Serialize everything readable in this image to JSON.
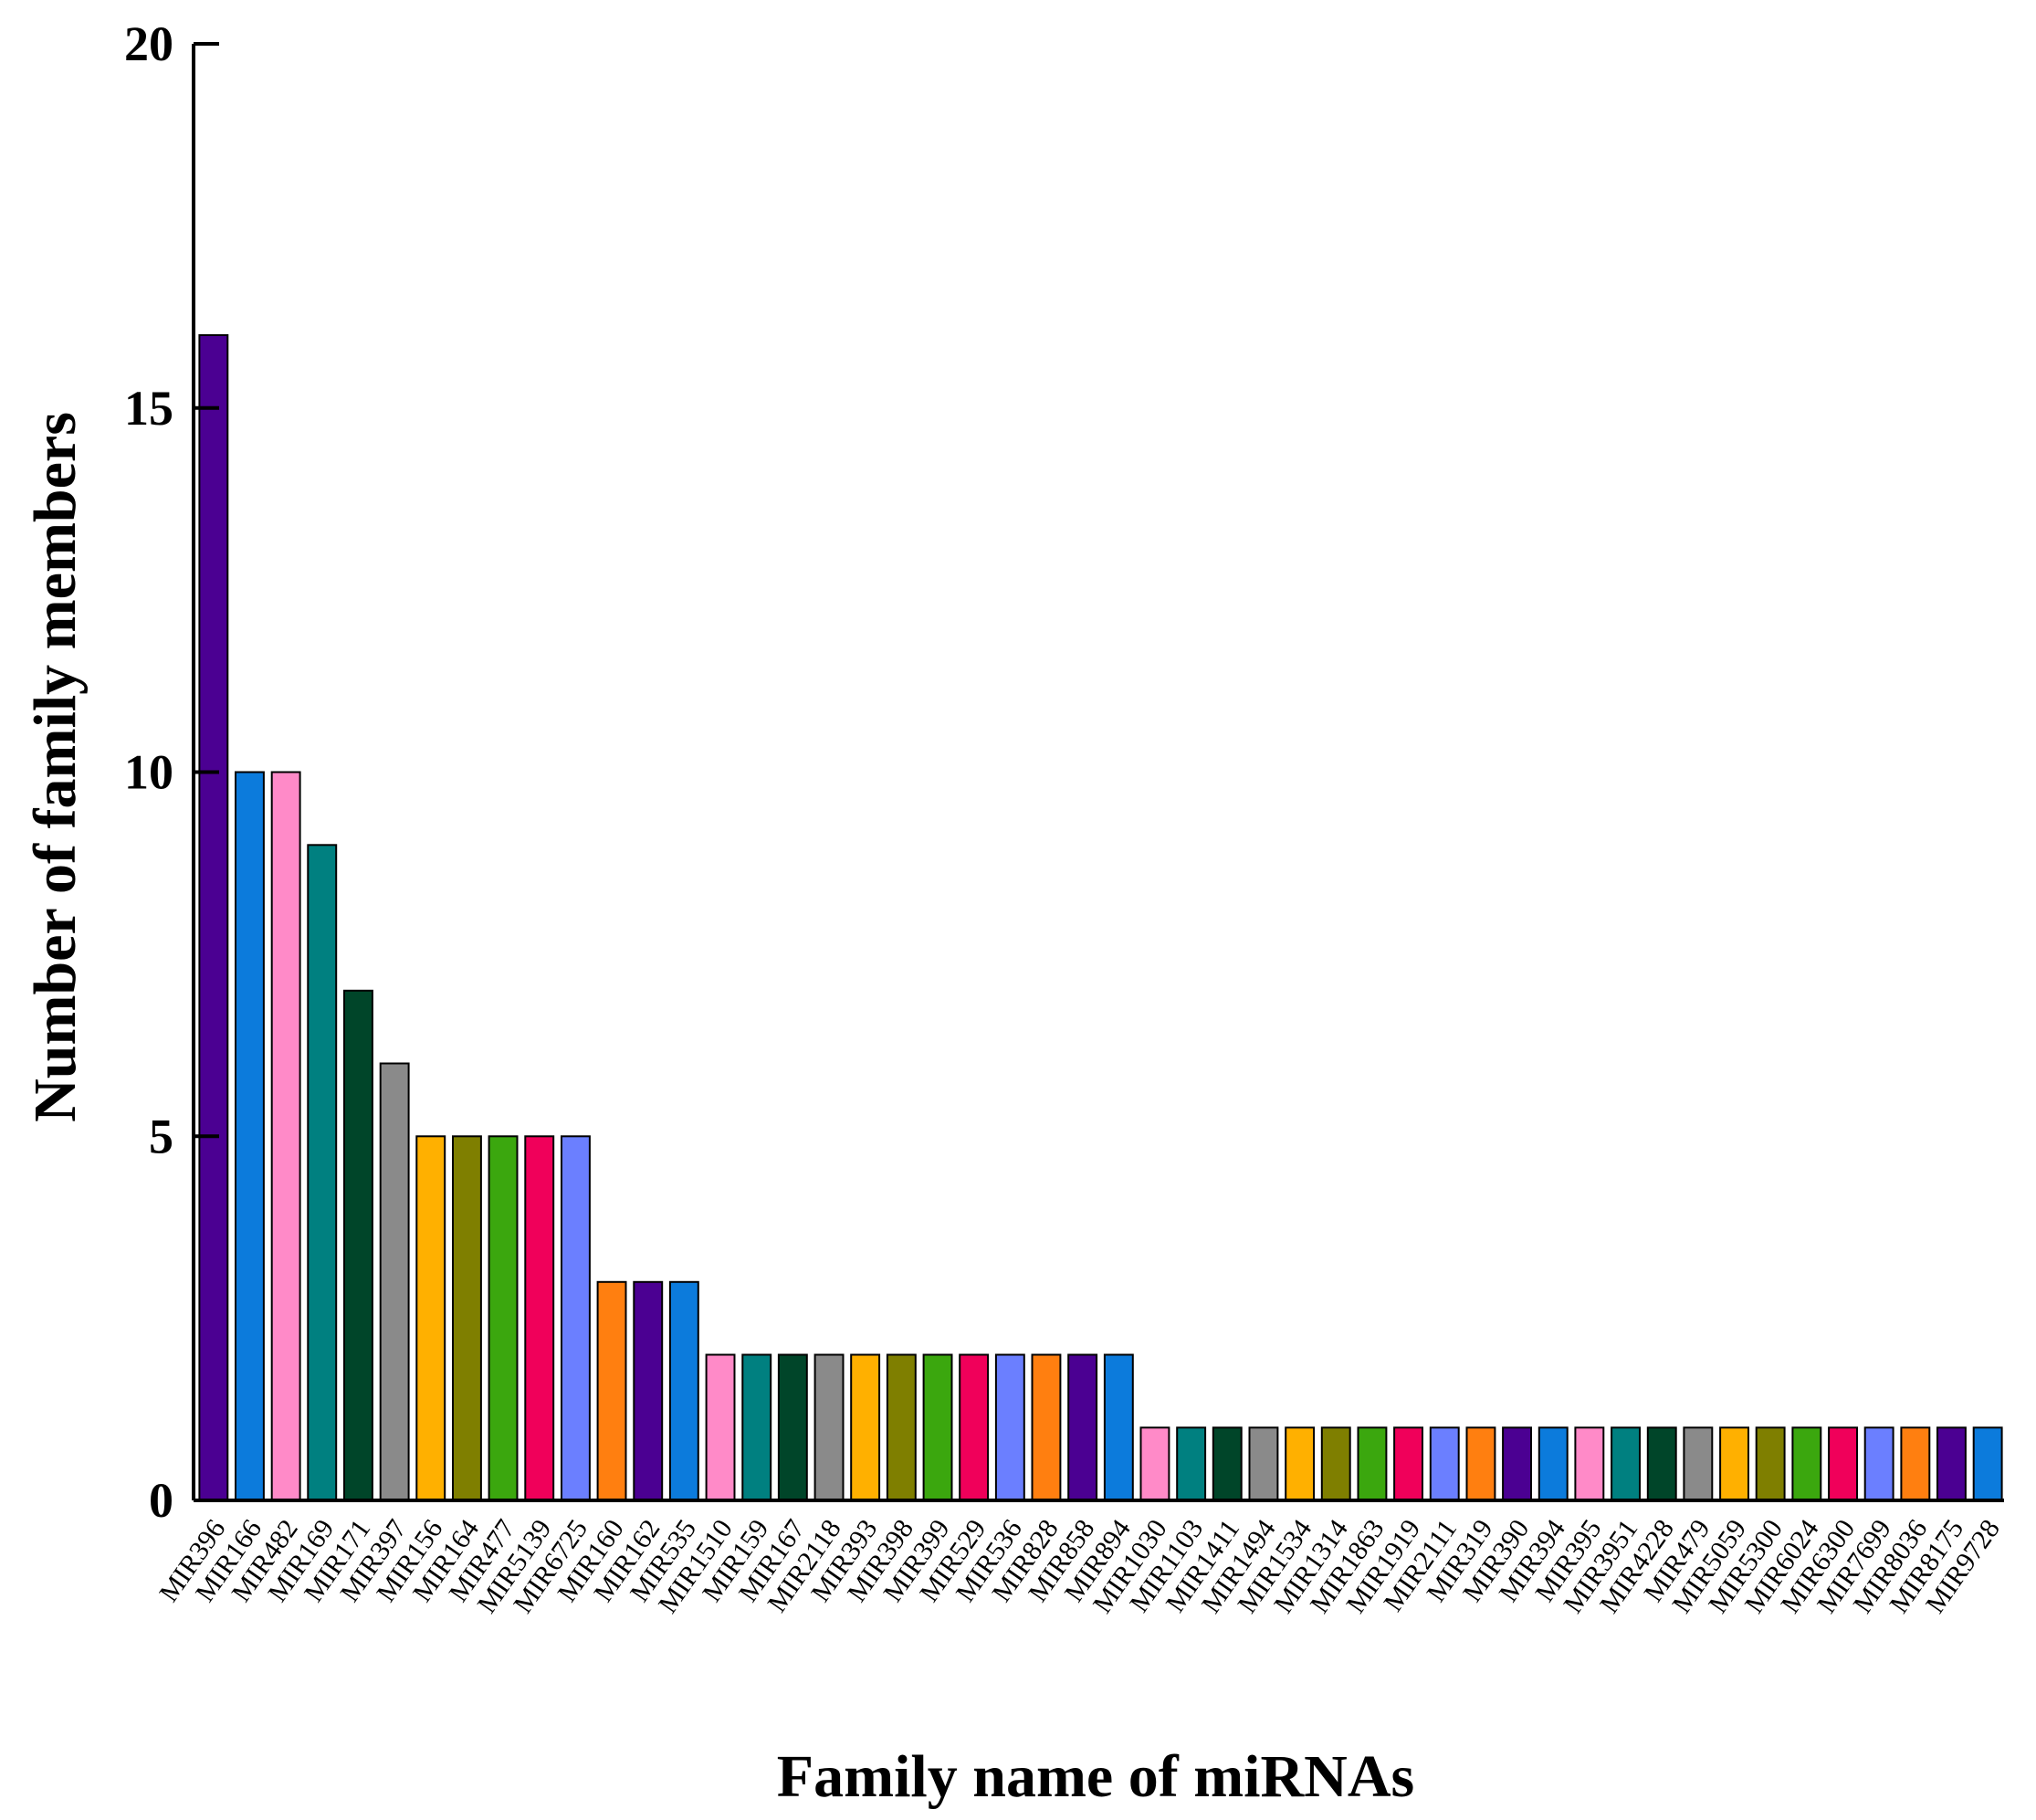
{
  "chart_data": {
    "type": "bar",
    "title": "",
    "xlabel": "Family name of miRNAs",
    "ylabel": "Number of family members",
    "ylim": [
      0,
      20
    ],
    "yticks": [
      0,
      5,
      10,
      15,
      20
    ],
    "grid": false,
    "legend": "none",
    "categories": [
      "MIR396",
      "MIR166",
      "MIR482",
      "MIR169",
      "MIR171",
      "MIR397",
      "MIR156",
      "MIR164",
      "MIR477",
      "MIR5139",
      "MIR6725",
      "MIR160",
      "MIR162",
      "MIR535",
      "MIR1510",
      "MIR159",
      "MIR167",
      "MIR2118",
      "MIR393",
      "MIR398",
      "MIR399",
      "MIR529",
      "MIR536",
      "MIR828",
      "MIR858",
      "MIR894",
      "MIR1030",
      "MIR1103",
      "MIR1411",
      "MIR1494",
      "MIR1534",
      "MIR1314",
      "MIR1863",
      "MIR1919",
      "MIR2111",
      "MIR319",
      "MIR390",
      "MIR394",
      "MIR395",
      "MIR3951",
      "MIR4228",
      "MIR479",
      "MIR5059",
      "MIR5300",
      "MIR6024",
      "MIR6300",
      "MIR7699",
      "MIR8036",
      "MIR8175",
      "MIR9728"
    ],
    "values": [
      16,
      10,
      10,
      9,
      7,
      6,
      5,
      5,
      5,
      5,
      5,
      3,
      3,
      3,
      2,
      2,
      2,
      2,
      2,
      2,
      2,
      2,
      2,
      2,
      2,
      2,
      1,
      1,
      1,
      1,
      1,
      1,
      1,
      1,
      1,
      1,
      1,
      1,
      1,
      1,
      1,
      1,
      1,
      1,
      1,
      1,
      1,
      1,
      1,
      1
    ],
    "colors": [
      "#4B0092",
      "#0C7BDC",
      "#FF8AC8",
      "#008080",
      "#004529",
      "#8A8A8A",
      "#FFB000",
      "#7F7F00",
      "#3BA70E",
      "#F0005A",
      "#6B7FFF",
      "#FF7F10"
    ]
  }
}
